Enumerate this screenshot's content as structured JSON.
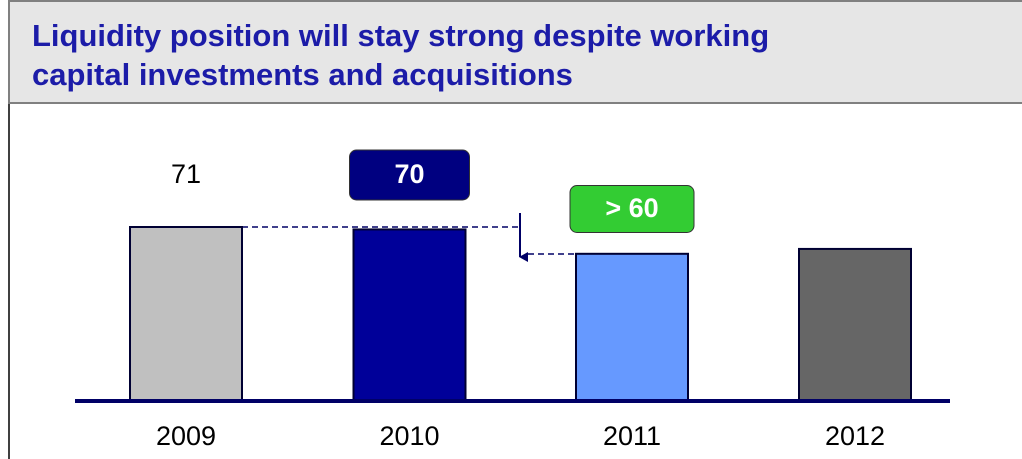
{
  "chart_data": {
    "type": "bar",
    "title": "Liquidity position will stay strong despite working capital investments and acquisitions",
    "categories": [
      "2009",
      "2010",
      "2011",
      "2012"
    ],
    "values": [
      71,
      70,
      60,
      62
    ],
    "value_labels": [
      "71",
      "70",
      "> 60",
      null
    ],
    "colors": [
      "#c0c0c0",
      "#000099",
      "#6699ff",
      "#666666"
    ]
  }
}
